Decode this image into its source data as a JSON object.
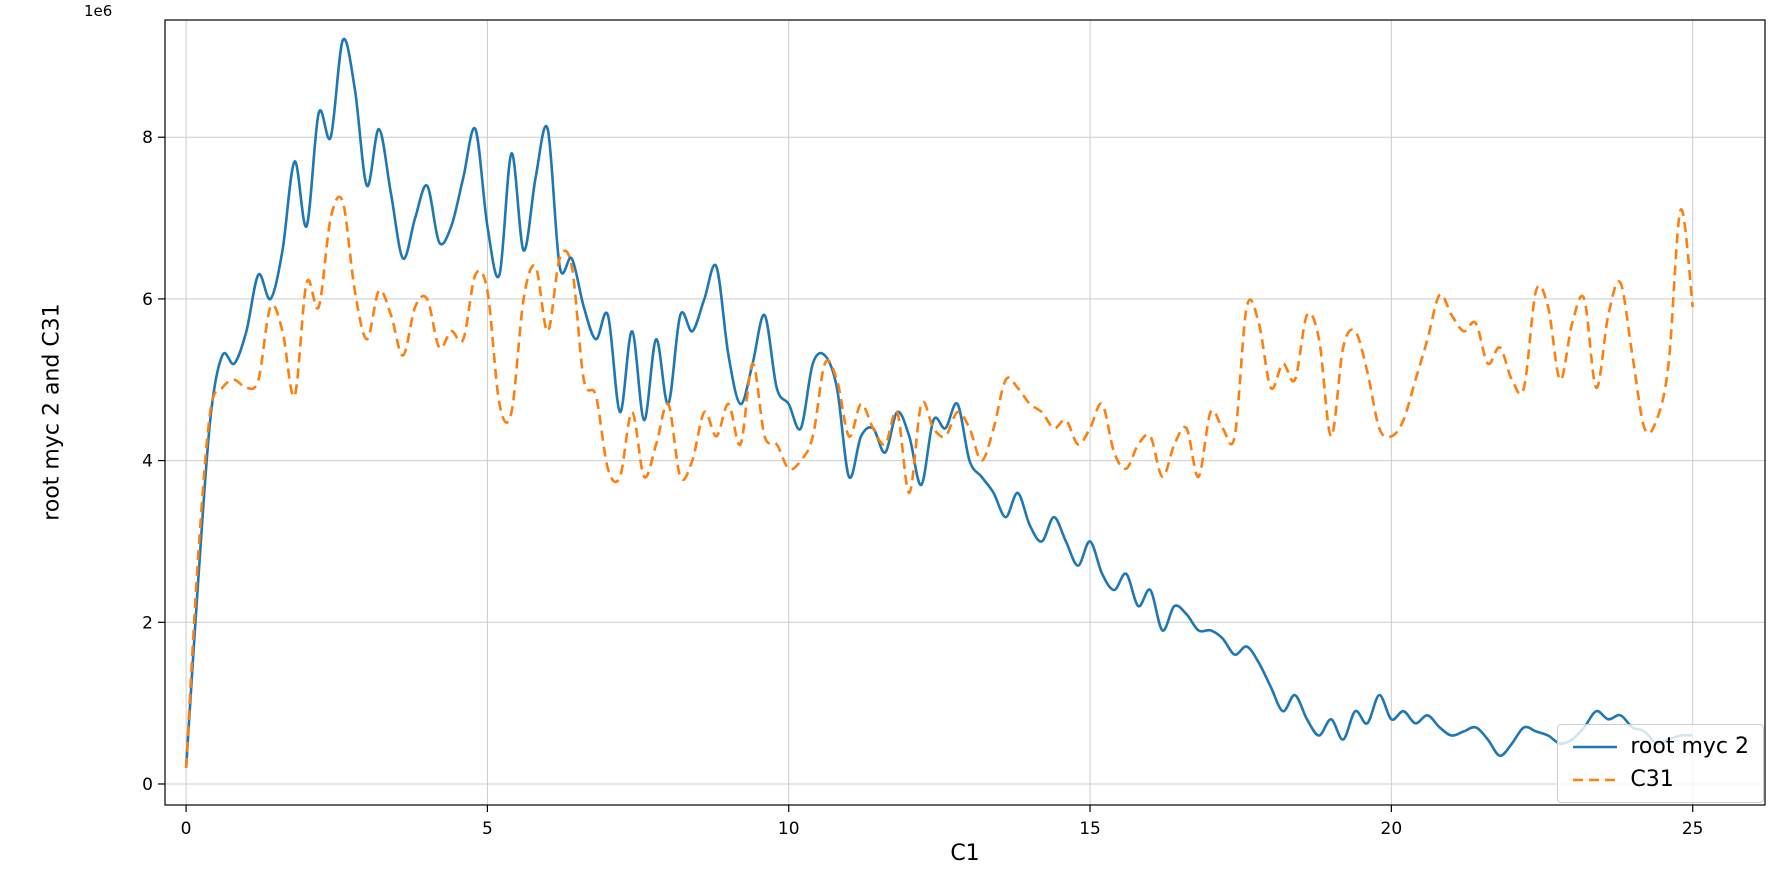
{
  "chart_data": {
    "type": "line",
    "title": "",
    "xlabel": "C1",
    "ylabel": "root myc 2 and C31",
    "offset_text": "1e6",
    "y_unit": 1000000,
    "xlim": [
      -0.35,
      26.2
    ],
    "ylim": [
      -0.26,
      9.45
    ],
    "xticks": [
      0,
      5,
      10,
      15,
      20,
      25
    ],
    "xtick_labels": [
      "0",
      "5",
      "10",
      "15",
      "20",
      "25"
    ],
    "yticks": [
      0,
      2,
      4,
      6,
      8
    ],
    "ytick_labels": [
      "0",
      "2",
      "4",
      "6",
      "8"
    ],
    "grid": true,
    "grid_color": "#cccccc",
    "spine_color": "#000000",
    "legend_position": "lower right",
    "x": [
      0,
      0.2,
      0.4,
      0.6,
      0.8,
      1,
      1.2,
      1.4,
      1.6,
      1.8,
      2,
      2.2,
      2.4,
      2.6,
      2.8,
      3,
      3.2,
      3.4,
      3.6,
      3.8,
      4,
      4.2,
      4.4,
      4.6,
      4.8,
      5,
      5.2,
      5.4,
      5.6,
      5.8,
      6,
      6.2,
      6.4,
      6.6,
      6.8,
      7,
      7.2,
      7.4,
      7.6,
      7.8,
      8,
      8.2,
      8.4,
      8.6,
      8.8,
      9,
      9.2,
      9.4,
      9.6,
      9.8,
      10,
      10.2,
      10.4,
      10.6,
      10.8,
      11,
      11.2,
      11.4,
      11.6,
      11.8,
      12,
      12.2,
      12.4,
      12.6,
      12.8,
      13,
      13.2,
      13.4,
      13.6,
      13.8,
      14,
      14.2,
      14.4,
      14.6,
      14.8,
      15,
      15.2,
      15.4,
      15.6,
      15.8,
      16,
      16.2,
      16.4,
      16.6,
      16.8,
      17,
      17.2,
      17.4,
      17.6,
      17.8,
      18,
      18.2,
      18.4,
      18.6,
      18.8,
      19,
      19.2,
      19.4,
      19.6,
      19.8,
      20,
      20.2,
      20.4,
      20.6,
      20.8,
      21,
      21.2,
      21.4,
      21.6,
      21.8,
      22,
      22.2,
      22.4,
      22.6,
      22.8,
      23,
      23.2,
      23.4,
      23.6,
      23.8,
      24,
      24.2,
      24.4,
      24.6,
      24.8,
      25
    ],
    "series": [
      {
        "name": "root myc 2",
        "color": "#1f77b4",
        "line_style": "solid",
        "dash": "",
        "values": [
          0.2,
          2.5,
          4.5,
          5.3,
          5.2,
          5.6,
          6.3,
          6.0,
          6.6,
          7.7,
          6.9,
          8.3,
          8.0,
          9.2,
          8.6,
          7.4,
          8.1,
          7.3,
          6.5,
          7.0,
          7.4,
          6.7,
          6.9,
          7.5,
          8.1,
          6.9,
          6.3,
          7.8,
          6.6,
          7.5,
          8.1,
          6.4,
          6.5,
          5.9,
          5.5,
          5.8,
          4.6,
          5.6,
          4.5,
          5.5,
          4.7,
          5.8,
          5.6,
          6.0,
          6.4,
          5.3,
          4.7,
          5.2,
          5.8,
          4.9,
          4.7,
          4.4,
          5.2,
          5.3,
          4.9,
          3.8,
          4.3,
          4.4,
          4.1,
          4.6,
          4.3,
          3.7,
          4.5,
          4.4,
          4.7,
          4.0,
          3.8,
          3.6,
          3.3,
          3.6,
          3.2,
          3.0,
          3.3,
          3.0,
          2.7,
          3.0,
          2.6,
          2.4,
          2.6,
          2.2,
          2.4,
          1.9,
          2.2,
          2.1,
          1.9,
          1.9,
          1.8,
          1.6,
          1.7,
          1.5,
          1.2,
          0.9,
          1.1,
          0.8,
          0.6,
          0.8,
          0.55,
          0.9,
          0.75,
          1.1,
          0.8,
          0.9,
          0.75,
          0.85,
          0.7,
          0.6,
          0.65,
          0.7,
          0.55,
          0.35,
          0.5,
          0.7,
          0.65,
          0.6,
          0.5,
          0.55,
          0.7,
          0.9,
          0.8,
          0.85,
          0.7,
          0.65,
          0.5,
          0.55,
          0.6,
          0.6
        ]
      },
      {
        "name": "C31",
        "color": "#ff7f0e",
        "line_style": "dashed",
        "dash": "10,6",
        "values": [
          0.2,
          2.8,
          4.6,
          4.9,
          5.0,
          4.9,
          5.0,
          5.9,
          5.6,
          4.8,
          6.2,
          5.9,
          7.0,
          7.2,
          6.1,
          5.5,
          6.1,
          5.8,
          5.3,
          5.9,
          6.0,
          5.4,
          5.6,
          5.5,
          6.3,
          6.1,
          4.7,
          4.6,
          6.0,
          6.4,
          5.6,
          6.5,
          6.4,
          5.0,
          4.8,
          3.9,
          3.8,
          4.6,
          3.8,
          4.2,
          4.7,
          3.8,
          4.0,
          4.6,
          4.3,
          4.7,
          4.2,
          5.2,
          4.3,
          4.2,
          3.9,
          4.0,
          4.3,
          5.2,
          5.0,
          4.3,
          4.7,
          4.4,
          4.2,
          4.6,
          3.6,
          4.7,
          4.4,
          4.3,
          4.6,
          4.4,
          4.0,
          4.4,
          5.0,
          4.9,
          4.7,
          4.6,
          4.4,
          4.5,
          4.2,
          4.4,
          4.7,
          4.1,
          3.9,
          4.2,
          4.3,
          3.8,
          4.2,
          4.4,
          3.8,
          4.6,
          4.4,
          4.3,
          5.9,
          5.7,
          4.9,
          5.2,
          5.0,
          5.8,
          5.5,
          4.3,
          5.4,
          5.6,
          5.1,
          4.4,
          4.3,
          4.5,
          5.0,
          5.5,
          6.05,
          5.8,
          5.6,
          5.7,
          5.2,
          5.4,
          5.0,
          4.9,
          6.1,
          5.9,
          5.0,
          5.7,
          6.0,
          4.9,
          5.8,
          6.2,
          5.3,
          4.4,
          4.5,
          5.2,
          7.1,
          5.9
        ]
      }
    ]
  }
}
